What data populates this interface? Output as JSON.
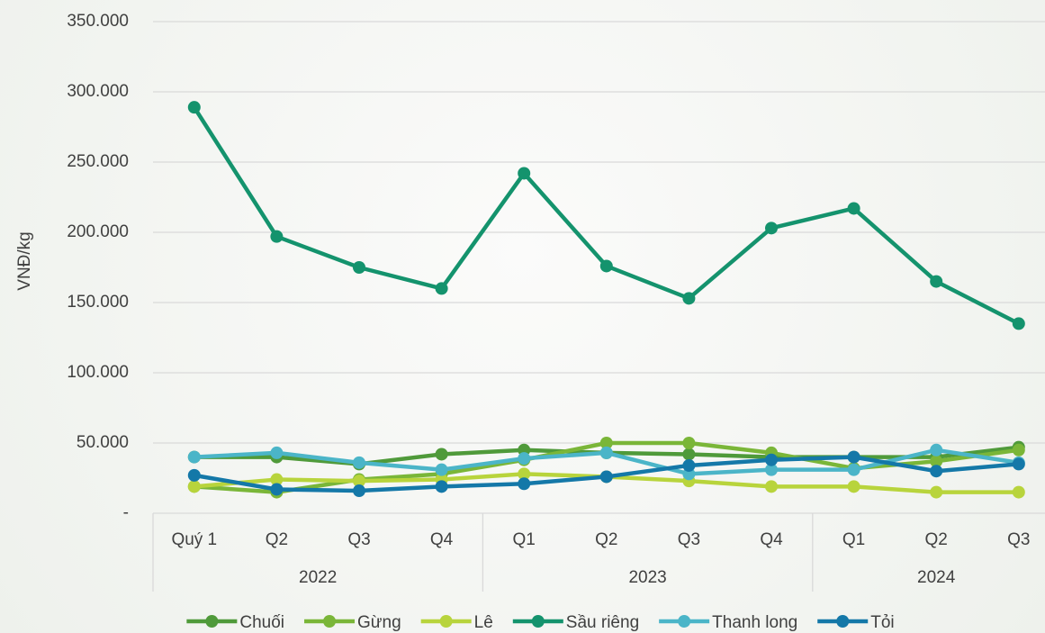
{
  "chart_data": {
    "type": "line",
    "y_label": "VNĐ/kg",
    "categories": [
      "Quý 1",
      "Q2",
      "Q3",
      "Q4",
      "Q1",
      "Q2",
      "Q3",
      "Q4",
      "Q1",
      "Q2",
      "Q3"
    ],
    "category_groups": [
      "2022",
      "2022",
      "2022",
      "2022",
      "2023",
      "2023",
      "2023",
      "2023",
      "2024",
      "2024",
      "2024"
    ],
    "ylim": [
      0,
      350000
    ],
    "yticks": [
      {
        "value": 0,
        "label": "-"
      },
      {
        "value": 50000,
        "label": "50.000"
      },
      {
        "value": 100000,
        "label": "100.000"
      },
      {
        "value": 150000,
        "label": "150.000"
      },
      {
        "value": 200000,
        "label": "200.000"
      },
      {
        "value": 250000,
        "label": "250.000"
      },
      {
        "value": 300000,
        "label": "300.000"
      },
      {
        "value": 350000,
        "label": "350.000"
      }
    ],
    "grid": true,
    "legend": "bottom",
    "series": [
      {
        "name": "Chuối",
        "color": "#4f9a3a",
        "values": [
          40000,
          40000,
          35000,
          42000,
          45000,
          43000,
          42000,
          40000,
          40000,
          40000,
          47000
        ]
      },
      {
        "name": "Gừng",
        "color": "#7ab638",
        "values": [
          19000,
          15000,
          24000,
          28000,
          38000,
          50000,
          50000,
          43000,
          32000,
          37000,
          45000
        ]
      },
      {
        "name": "Lê",
        "color": "#b8d43c",
        "values": [
          19000,
          24000,
          23000,
          24000,
          28000,
          26000,
          23000,
          19000,
          19000,
          15000,
          15000
        ]
      },
      {
        "name": "Sầu riêng",
        "color": "#14936d",
        "values": [
          289000,
          197000,
          175000,
          160000,
          242000,
          176000,
          153000,
          203000,
          217000,
          165000,
          135000
        ]
      },
      {
        "name": "Thanh long",
        "color": "#4bb5c8",
        "values": [
          40000,
          43000,
          36000,
          31000,
          39000,
          43000,
          28000,
          31000,
          31000,
          45000,
          36000
        ]
      },
      {
        "name": "Tỏi",
        "color": "#1478a8",
        "values": [
          27000,
          17000,
          16000,
          19000,
          21000,
          26000,
          34000,
          38000,
          40000,
          30000,
          35000
        ]
      }
    ]
  }
}
